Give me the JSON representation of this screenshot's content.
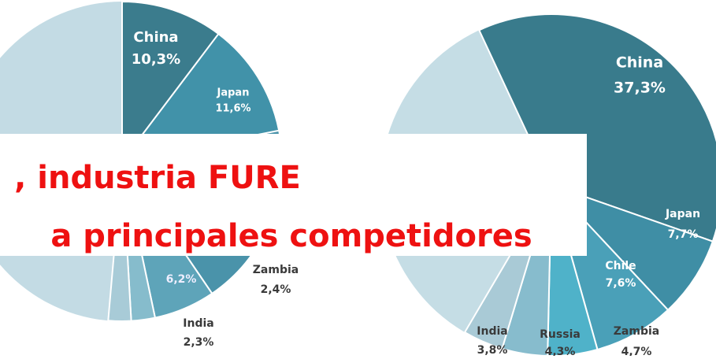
{
  "chart_data": [
    {
      "type": "pie",
      "categories": [
        "China",
        "Japan",
        null,
        "Zambia",
        "India"
      ],
      "values": [
        10.3,
        11.6,
        6.2,
        2.4,
        2.3
      ],
      "value_labels": [
        "10,3%",
        "11,6%",
        "6,2%",
        "2,4%",
        "2,3%"
      ],
      "colors": [
        "#3b7c8d",
        "#4192a9",
        "#5ea4b9",
        "#86bccc",
        "#a8cbd7"
      ]
    },
    {
      "type": "pie",
      "categories": [
        "China",
        "Japan",
        "Chile",
        "Zambia",
        "Russia",
        "India"
      ],
      "values": [
        37.3,
        7.7,
        7.6,
        4.7,
        4.3,
        3.8
      ],
      "value_labels": [
        "37,3%",
        "7,7%",
        "7,6%",
        "4,7%",
        "4,3%",
        "3,8%"
      ],
      "colors": [
        "#397b8c",
        "#3f8ea5",
        "#4aa0b8",
        "#4fb2c9",
        "#87bccd",
        "#a9cad6"
      ]
    }
  ],
  "overlay": {
    "line1": ", industria FURE",
    "line2": "a principales competidores"
  }
}
